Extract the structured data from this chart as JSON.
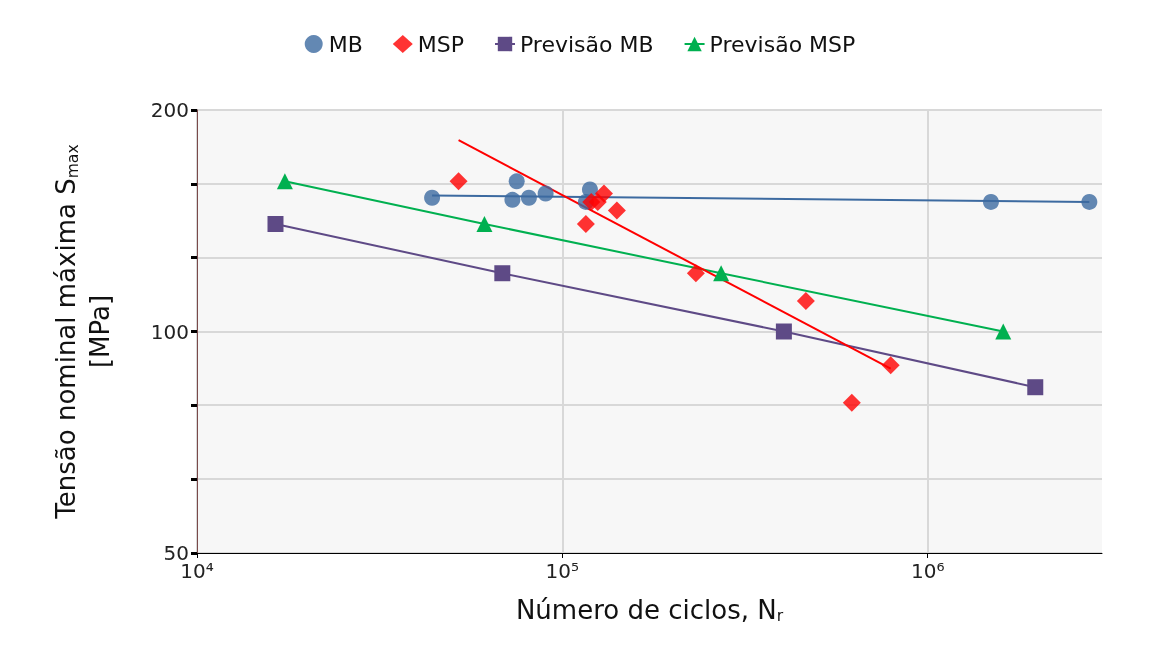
{
  "chart_data": {
    "type": "scatter",
    "xlabel": "Número de ciclos, N$_{r}$",
    "ylabel": "Tensão nominal máxima S$_{max}$\n[MPa]",
    "log": "xy",
    "grid": true,
    "legend": "top",
    "xlim": [
      10000,
      3000000
    ],
    "xticks": [
      {
        "value": 10000,
        "label": "10⁴"
      },
      {
        "value": 100000,
        "label": "10⁵"
      },
      {
        "value": 1000000,
        "label": "10⁶"
      }
    ],
    "ylim": [
      50,
      200
    ],
    "yticks": [
      50,
      {
        "value": 63,
        "label": null
      },
      {
        "value": 79.4,
        "label": null
      },
      100,
      {
        "value": 126,
        "label": null
      },
      {
        "value": 158.7,
        "label": null
      },
      200
    ],
    "series": [
      {
        "name": "MB",
        "color": "#3c6aa0",
        "marker": "circle",
        "x": [
          44000,
          75000,
          73000,
          81000,
          90000,
          116000,
          119000,
          1490000,
          2770000
        ],
        "values": [
          152,
          160,
          151,
          152,
          154,
          150,
          156,
          150,
          150
        ]
      },
      {
        "name": "MSP",
        "color": "#ff0000",
        "marker": "diamond",
        "x": [
          52000,
          116000,
          120000,
          125000,
          130000,
          141000,
          232000,
          464000,
          620000,
          792000
        ],
        "values": [
          160,
          140,
          150,
          150,
          154,
          146,
          120,
          110,
          80,
          90
        ]
      },
      {
        "name": "Previsão MB",
        "type": "line",
        "color": "#5e4a86",
        "marker": "square",
        "x": [
          16400,
          68500,
          404000,
          1970000
        ],
        "values": [
          140,
          120,
          100,
          84
        ]
      },
      {
        "name": "Previsão MSP",
        "type": "line",
        "color": "#00b050",
        "marker": "triangle",
        "x": [
          17400,
          61200,
          272000,
          1610000
        ],
        "values": [
          160,
          140,
          120,
          100
        ]
      },
      {
        "type": "line",
        "color": "#3c6aa0",
        "marker": "none",
        "x": [
          44000,
          2770000
        ],
        "values": [
          153,
          150
        ]
      },
      {
        "type": "line",
        "color": "#ff0000",
        "marker": "none",
        "x": [
          52000,
          792000
        ],
        "values": [
          182,
          89
        ]
      }
    ]
  }
}
